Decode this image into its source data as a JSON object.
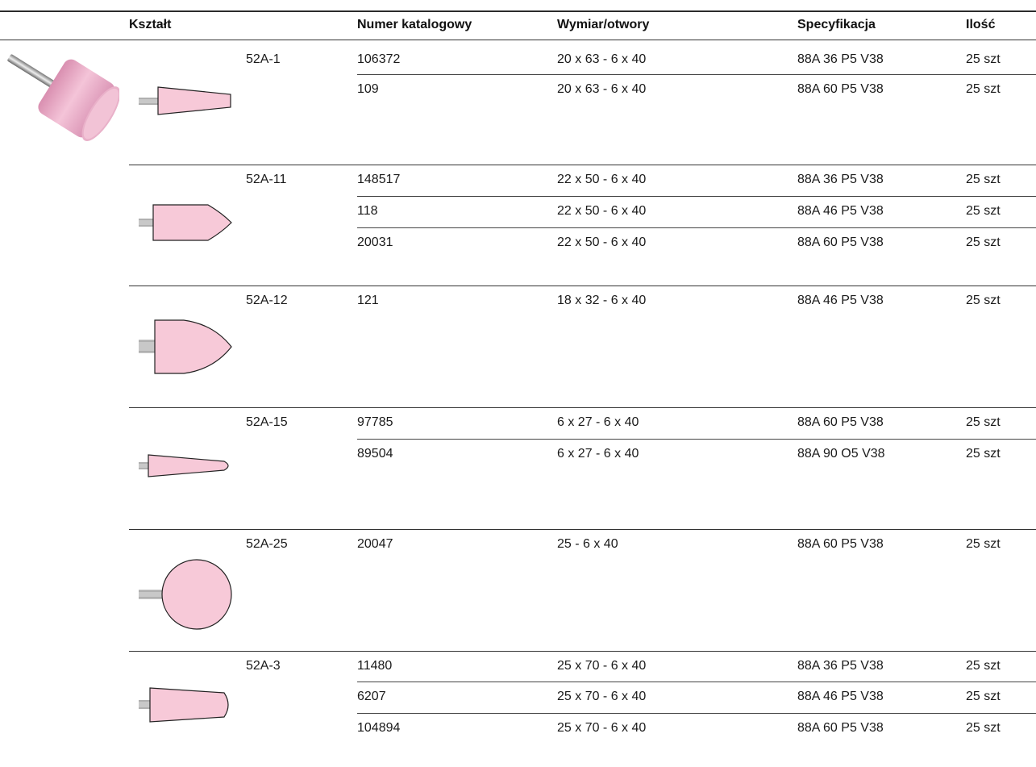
{
  "headers": {
    "shape": "Kształt",
    "catalog_number": "Numer katalogowy",
    "dimension": "Wymiar/otwory",
    "specification": "Specyfikacja",
    "quantity": "Ilość"
  },
  "groups": [
    {
      "code": "52A-1",
      "shape": "cone-flat-tip",
      "rows": [
        {
          "num": "106372",
          "dim": "20 x 63 - 6 x 40",
          "spec": "88A 36 P5 V38",
          "qty": "25 szt"
        },
        {
          "num": "109",
          "dim": "20 x 63 - 6 x 40",
          "spec": "88A 60 P5 V38",
          "qty": "25 szt"
        }
      ]
    },
    {
      "code": "52A-11",
      "shape": "pointed-bullet",
      "rows": [
        {
          "num": "148517",
          "dim": "22 x 50 - 6 x 40",
          "spec": "88A 36 P5 V38",
          "qty": "25 szt"
        },
        {
          "num": "118",
          "dim": "22 x 50 - 6 x 40",
          "spec": "88A 46 P5 V38",
          "qty": "25 szt"
        },
        {
          "num": "20031",
          "dim": "22 x 50 - 6 x 40",
          "spec": "88A 60 P5 V38",
          "qty": "25 szt"
        }
      ]
    },
    {
      "code": "52A-12",
      "shape": "rounded-bullet",
      "rows": [
        {
          "num": "121",
          "dim": "18 x 32 - 6 x 40",
          "spec": "88A 46 P5 V38",
          "qty": "25 szt"
        }
      ]
    },
    {
      "code": "52A-15",
      "shape": "slim-tapered",
      "rows": [
        {
          "num": "97785",
          "dim": "6 x 27 - 6 x 40",
          "spec": "88A 60 P5 V38",
          "qty": "25 szt"
        },
        {
          "num": "89504",
          "dim": "6 x 27 - 6 x 40",
          "spec": "88A 90 O5 V38",
          "qty": "25 szt"
        }
      ]
    },
    {
      "code": "52A-25",
      "shape": "ball",
      "rows": [
        {
          "num": "20047",
          "dim": "25 - 6 x 40",
          "spec": "88A 60 P5 V38",
          "qty": "25 szt"
        }
      ]
    },
    {
      "code": "52A-3",
      "shape": "tapered-round-end",
      "rows": [
        {
          "num": "11480",
          "dim": "25 x 70 - 6 x 40",
          "spec": "88A 36 P5 V38",
          "qty": "25 szt"
        },
        {
          "num": "6207",
          "dim": "25 x 70 - 6 x 40",
          "spec": "88A 46 P5 V38",
          "qty": "25 szt"
        },
        {
          "num": "104894",
          "dim": "25 x 70 - 6 x 40",
          "spec": "88A 60 P5 V38",
          "qty": "25 szt"
        }
      ]
    }
  ],
  "colors": {
    "stone_pink": "#f7c9d8",
    "shank_gray": "#c8c8c8",
    "outline": "#222222"
  }
}
